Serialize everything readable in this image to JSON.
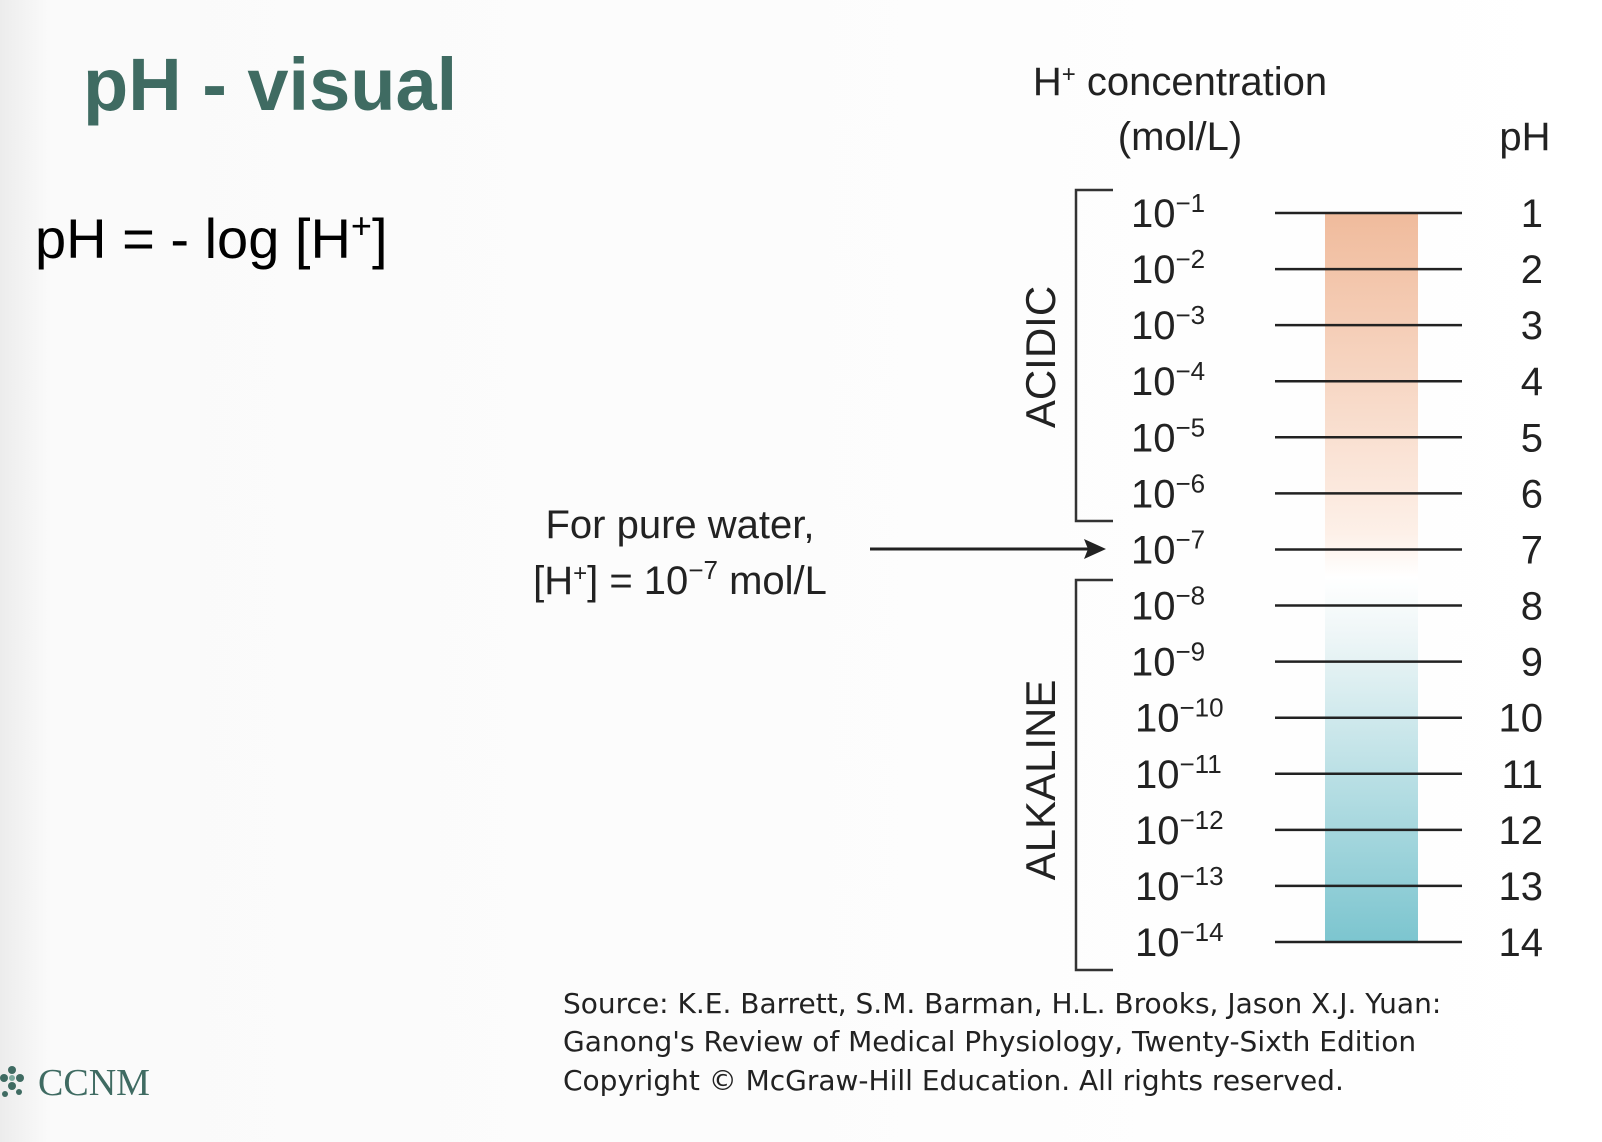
{
  "header": {
    "title": "pH - visual"
  },
  "formula": {
    "main": "pH = - log  [H",
    "sup": "+",
    "end": "]"
  },
  "diagram": {
    "header": {
      "h": "H",
      "sup": "+",
      "rest": " concentration",
      "unit": "(mol/L)",
      "ph": "pH"
    },
    "rows": [
      {
        "base": "10",
        "exp": "−1",
        "ph": "1"
      },
      {
        "base": "10",
        "exp": "−2",
        "ph": "2"
      },
      {
        "base": "10",
        "exp": "−3",
        "ph": "3"
      },
      {
        "base": "10",
        "exp": "−4",
        "ph": "4"
      },
      {
        "base": "10",
        "exp": "−5",
        "ph": "5"
      },
      {
        "base": "10",
        "exp": "−6",
        "ph": "6"
      },
      {
        "base": "10",
        "exp": "−7",
        "ph": "7"
      },
      {
        "base": "10",
        "exp": "−8",
        "ph": "8"
      },
      {
        "base": "10",
        "exp": "−9",
        "ph": "9"
      },
      {
        "base": "10",
        "exp": "−10",
        "ph": "10"
      },
      {
        "base": "10",
        "exp": "−11",
        "ph": "11"
      },
      {
        "base": "10",
        "exp": "−12",
        "ph": "12"
      },
      {
        "base": "10",
        "exp": "−13",
        "ph": "13"
      },
      {
        "base": "10",
        "exp": "−14",
        "ph": "14"
      }
    ],
    "acidic": "ACIDIC",
    "alkaline": "ALKALINE",
    "note": {
      "line1": "For pure water,",
      "a": "[H",
      "sup": "+",
      "b": "] = 10",
      "exp": "−7",
      "c": " mol/L"
    }
  },
  "source": [
    "Source: K.E. Barrett, S.M. Barman, H.L. Brooks, Jason X.J. Yuan:",
    "Ganong's Review of Medical Physiology, Twenty-Sixth Edition",
    "Copyright © McGraw-Hill Education. All rights reserved."
  ],
  "logo": "CCNM"
}
